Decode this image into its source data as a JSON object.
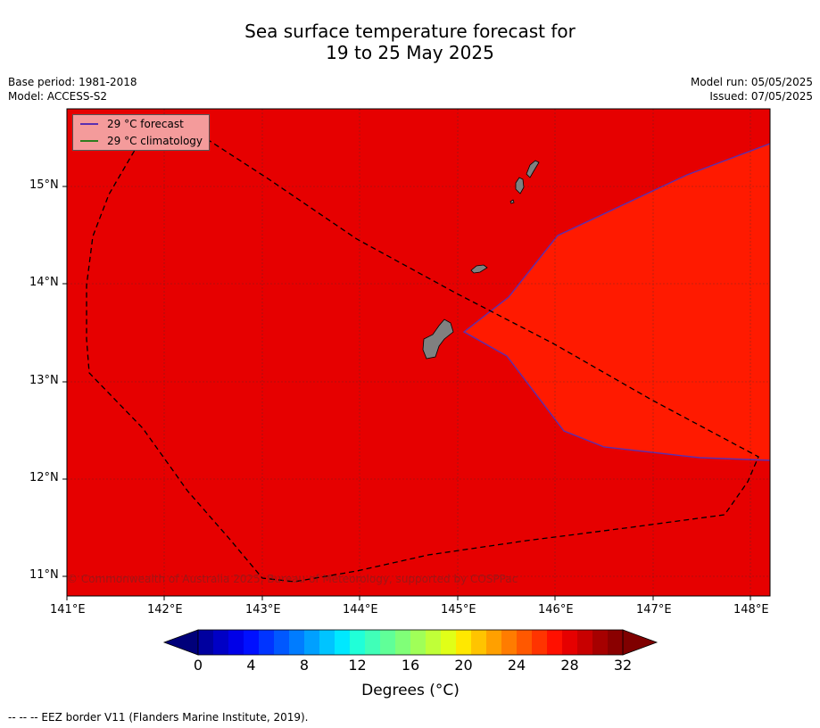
{
  "title": {
    "line1": "Sea surface temperature forecast for",
    "line2": "19 to 25 May 2025"
  },
  "meta_left": {
    "base_period": "Base period: 1981-2018",
    "model": "Model: ACCESS-S2"
  },
  "meta_right": {
    "model_run": "Model run: 05/05/2025",
    "issued": "Issued: 07/05/2025"
  },
  "legend": {
    "forecast": {
      "label": "29 °C  forecast",
      "color": "#5a2fb0"
    },
    "climatology": {
      "label": "29 °C  climatology",
      "color": "#2e7d1e"
    }
  },
  "credit": "© Commonwealth of Australia 2025, Bureau of Meteorology, supported by COSPPac",
  "axes": {
    "lon_ticks": [
      "141°E",
      "142°E",
      "143°E",
      "144°E",
      "145°E",
      "146°E",
      "147°E",
      "148°E"
    ],
    "lat_ticks": [
      "15°N",
      "14°N",
      "13°N",
      "12°N",
      "11°N"
    ]
  },
  "regions": [
    {
      "name": "28-29 °C",
      "color": "#e60000"
    },
    {
      "name": "29-30 °C",
      "color": "#ff1a00"
    }
  ],
  "colorbar": {
    "labels": [
      "0",
      "4",
      "8",
      "12",
      "16",
      "20",
      "24",
      "28",
      "32"
    ],
    "title": "Degrees ($^\\circ$C)",
    "title_display": "Degrees (°C)",
    "colors": [
      "#00009f",
      "#0000c5",
      "#0000e8",
      "#0010ff",
      "#0034ff",
      "#0058ff",
      "#007cff",
      "#00a0ff",
      "#00c4ff",
      "#00e8ff",
      "#20ffd8",
      "#40ffb8",
      "#60ff98",
      "#80ff78",
      "#a0ff58",
      "#c0ff38",
      "#e0ff18",
      "#ffe800",
      "#ffc400",
      "#ffa000",
      "#ff7c00",
      "#ff5800",
      "#ff3400",
      "#ff1000",
      "#e60000",
      "#c80000",
      "#a60000",
      "#8a0000"
    ],
    "under_color": "#00007a",
    "over_color": "#7f0000"
  },
  "footer": "--  --  -- EEZ border V11 (Flanders Marine Institute, 2019)."
}
